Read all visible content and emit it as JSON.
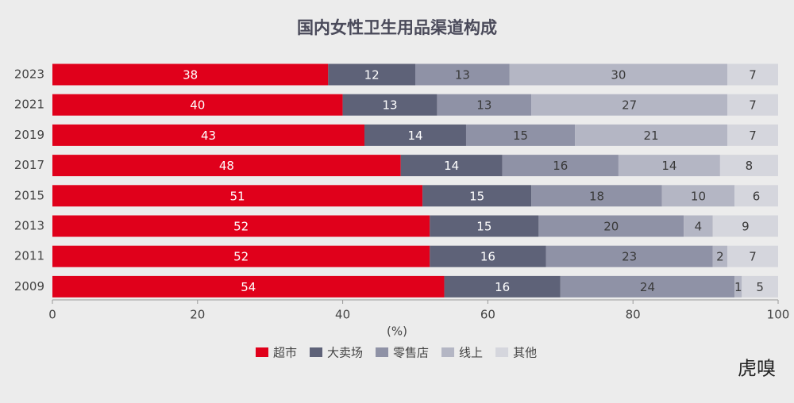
{
  "chart_data": {
    "type": "stacked_barh",
    "title": "国内女性卫生用品渠道构成",
    "categories": [
      "2023",
      "2021",
      "2019",
      "2017",
      "2015",
      "2013",
      "2011",
      "2009"
    ],
    "series": [
      {
        "name": "超市",
        "color": "#e0001b",
        "label_color": "#ffffff",
        "values": [
          38,
          40,
          43,
          48,
          51,
          52,
          52,
          54
        ]
      },
      {
        "name": "大卖场",
        "color": "#5e6278",
        "label_color": "#ffffff",
        "values": [
          12,
          13,
          14,
          14,
          15,
          15,
          16,
          16
        ]
      },
      {
        "name": "零售店",
        "color": "#8f92a6",
        "label_color": "#3a3a3a",
        "values": [
          13,
          13,
          15,
          16,
          18,
          20,
          23,
          24
        ]
      },
      {
        "name": "线上",
        "color": "#b4b6c4",
        "label_color": "#3a3a3a",
        "values": [
          30,
          27,
          21,
          14,
          10,
          4,
          2,
          1
        ]
      },
      {
        "name": "其他",
        "color": "#d5d6dd",
        "label_color": "#3a3a3a",
        "values": [
          7,
          7,
          7,
          8,
          6,
          9,
          7,
          5
        ]
      }
    ],
    "xlabel": "(%)",
    "xlim": [
      0,
      100
    ],
    "xticks": [
      0,
      20,
      40,
      60,
      80,
      100
    ],
    "grid": false,
    "legend": "bottom",
    "watermark": "虎嗅"
  }
}
